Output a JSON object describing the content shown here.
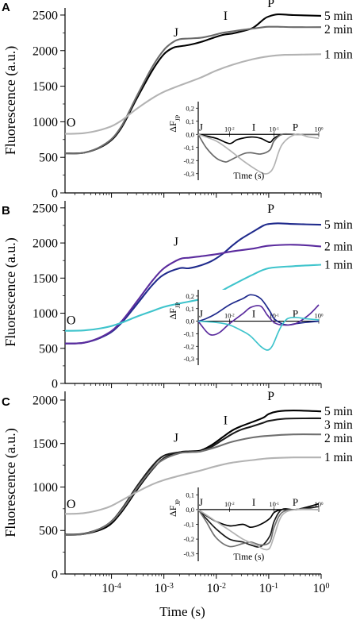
{
  "figure": {
    "xlabel": "Time (s)",
    "x_ticks": [
      {
        "exp": -4,
        "base": "10",
        "sup": "-4"
      },
      {
        "exp": -3,
        "base": "10",
        "sup": "-3"
      },
      {
        "exp": -2,
        "base": "10",
        "sup": "-2"
      },
      {
        "exp": -1,
        "base": "10",
        "sup": "-1"
      },
      {
        "exp": 0,
        "base": "10",
        "sup": "0"
      }
    ]
  },
  "chart_data": [
    {
      "type": "line",
      "panel_label": "A",
      "ylabel": "Fluorescence (a.u.)",
      "x_scale": "log",
      "xlim": [
        1.3e-05,
        1
      ],
      "ylim": [
        0,
        2600
      ],
      "y_ticks": [
        0,
        500,
        1000,
        1500,
        2000,
        2500
      ],
      "phase_labels": [
        {
          "text": "O",
          "x": 1.7e-05,
          "y": 930
        },
        {
          "text": "J",
          "x": 0.0017,
          "y": 2200
        },
        {
          "text": "I",
          "x": 0.015,
          "y": 2430
        },
        {
          "text": "P",
          "x": 0.11,
          "y": 2610
        }
      ],
      "series": [
        {
          "name": "5 min",
          "color": "#000000",
          "x": [
            1e-05,
            3e-05,
            8e-05,
            0.00015,
            0.0003,
            0.0006,
            0.001,
            0.0015,
            0.002,
            0.003,
            0.005,
            0.008,
            0.013,
            0.02,
            0.03,
            0.05,
            0.08,
            0.1,
            0.15,
            0.3,
            1
          ],
          "y": [
            560,
            565,
            690,
            900,
            1320,
            1720,
            1950,
            2040,
            2060,
            2080,
            2120,
            2170,
            2220,
            2240,
            2270,
            2320,
            2440,
            2480,
            2510,
            2500,
            2490
          ]
        },
        {
          "name": "2 min",
          "color": "#6b6b6b",
          "x": [
            1e-05,
            3e-05,
            8e-05,
            0.00015,
            0.0003,
            0.0006,
            0.001,
            0.0015,
            0.002,
            0.003,
            0.005,
            0.008,
            0.013,
            0.02,
            0.03,
            0.05,
            0.08,
            0.1,
            0.15,
            0.3,
            1
          ],
          "y": [
            560,
            565,
            700,
            920,
            1350,
            1770,
            2010,
            2120,
            2160,
            2170,
            2180,
            2210,
            2250,
            2270,
            2290,
            2310,
            2330,
            2335,
            2335,
            2330,
            2330
          ]
        },
        {
          "name": "1 min",
          "color": "#b3b3b3",
          "x": [
            1e-05,
            3e-05,
            8e-05,
            0.00015,
            0.0003,
            0.0006,
            0.001,
            0.002,
            0.005,
            0.01,
            0.02,
            0.05,
            0.1,
            0.2,
            0.5,
            1
          ],
          "y": [
            830,
            840,
            910,
            1010,
            1180,
            1330,
            1420,
            1510,
            1620,
            1720,
            1800,
            1880,
            1920,
            1940,
            1945,
            1950
          ]
        }
      ],
      "inset": {
        "ylabel": "ΔF",
        "ylabel_sub": "JP",
        "xlabel": "Time (s)",
        "ylim": [
          -0.35,
          0.25
        ],
        "y_ticks": [
          "0,2",
          "0,1",
          "0,0",
          "-0,1",
          "-0,2",
          "-0,3"
        ],
        "x_ticks": [
          "10-2",
          "10-1",
          "100"
        ],
        "letters": [
          "J",
          "I",
          "P"
        ],
        "series": [
          {
            "name": "5 min",
            "color": "#000000",
            "x": [
              0.002,
              0.005,
              0.01,
              0.015,
              0.03,
              0.05,
              0.08,
              0.1,
              0.15,
              0.3,
              1
            ],
            "y": [
              0,
              -0.03,
              -0.07,
              -0.04,
              -0.02,
              -0.03,
              -0.06,
              -0.03,
              0,
              0,
              0
            ]
          },
          {
            "name": "2 min",
            "color": "#6b6b6b",
            "x": [
              0.002,
              0.003,
              0.005,
              0.008,
              0.01,
              0.02,
              0.03,
              0.05,
              0.08,
              0.1,
              0.15,
              0.3,
              1
            ],
            "y": [
              0,
              -0.1,
              -0.18,
              -0.21,
              -0.2,
              -0.15,
              -0.14,
              -0.15,
              -0.12,
              -0.05,
              0,
              0,
              0
            ]
          },
          {
            "name": "1 min",
            "color": "#b3b3b3",
            "x": [
              0.002,
              0.005,
              0.01,
              0.02,
              0.04,
              0.06,
              0.08,
              0.1,
              0.15,
              0.3,
              0.6,
              1
            ],
            "y": [
              0,
              -0.05,
              -0.12,
              -0.2,
              -0.27,
              -0.3,
              -0.29,
              -0.24,
              -0.08,
              0,
              -0.02,
              -0.03
            ]
          }
        ]
      }
    },
    {
      "type": "line",
      "panel_label": "B",
      "ylabel": "Fluorescence (a.u.)",
      "x_scale": "log",
      "xlim": [
        1.3e-05,
        1
      ],
      "ylim": [
        0,
        2600
      ],
      "y_ticks": [
        0,
        500,
        1000,
        1500,
        2000,
        2500
      ],
      "phase_labels": [
        {
          "text": "O",
          "x": 1.7e-05,
          "y": 840
        },
        {
          "text": "J",
          "x": 0.0017,
          "y": 1960
        },
        {
          "text": "P",
          "x": 0.11,
          "y": 2430
        }
      ],
      "series": [
        {
          "name": "5 min",
          "color": "#1f2a8c",
          "x": [
            1e-05,
            3e-05,
            8e-05,
            0.00015,
            0.0003,
            0.0006,
            0.001,
            0.002,
            0.003,
            0.005,
            0.008,
            0.013,
            0.02,
            0.03,
            0.05,
            0.08,
            0.1,
            0.15,
            0.3,
            1
          ],
          "y": [
            570,
            580,
            690,
            850,
            1120,
            1400,
            1550,
            1640,
            1640,
            1680,
            1740,
            1840,
            1960,
            2060,
            2160,
            2250,
            2270,
            2280,
            2270,
            2260
          ]
        },
        {
          "name": "2 min",
          "color": "#5b2c9e",
          "x": [
            1e-05,
            3e-05,
            8e-05,
            0.00015,
            0.0003,
            0.0006,
            0.001,
            0.002,
            0.003,
            0.005,
            0.01,
            0.02,
            0.05,
            0.1,
            0.3,
            1
          ],
          "y": [
            570,
            580,
            700,
            870,
            1160,
            1460,
            1640,
            1770,
            1790,
            1810,
            1840,
            1880,
            1920,
            1960,
            1975,
            1950
          ]
        },
        {
          "name": "1 min",
          "color": "#3fc4cc",
          "x": [
            1e-05,
            3e-05,
            8e-05,
            0.00015,
            0.0003,
            0.0006,
            0.001,
            0.002,
            0.005,
            0.01,
            0.02,
            0.05,
            0.1,
            0.3,
            1
          ],
          "y": [
            750,
            755,
            800,
            860,
            950,
            1030,
            1090,
            1140,
            1200,
            1280,
            1400,
            1550,
            1640,
            1670,
            1690
          ]
        }
      ],
      "inset": {
        "ylabel": "ΔF",
        "ylabel_sub": "JP",
        "xlabel": "",
        "ylim": [
          -0.35,
          0.25
        ],
        "y_ticks": [
          "0,2",
          "0,1",
          "0,0",
          "-0,1",
          "-0,2",
          "-0,3"
        ],
        "x_ticks": [
          "10-2",
          "10-1",
          "100"
        ],
        "letters": [
          "J",
          "I",
          "P"
        ],
        "series": [
          {
            "name": "5 min",
            "color": "#1f2a8c",
            "x": [
              0.002,
              0.003,
              0.005,
              0.01,
              0.02,
              0.03,
              0.05,
              0.08,
              0.1,
              0.15,
              0.2,
              0.3,
              0.5,
              1
            ],
            "y": [
              0,
              0.02,
              0.06,
              0.13,
              0.18,
              0.21,
              0.18,
              0.08,
              0.02,
              -0.02,
              -0.03,
              -0.02,
              -0.01,
              0
            ]
          },
          {
            "name": "2 min",
            "color": "#5b2c9e",
            "x": [
              0.002,
              0.003,
              0.004,
              0.006,
              0.01,
              0.02,
              0.03,
              0.05,
              0.07,
              0.1,
              0.15,
              0.3,
              0.6,
              1
            ],
            "y": [
              0,
              -0.08,
              -0.11,
              -0.09,
              -0.02,
              0.06,
              0.11,
              0.12,
              0.05,
              -0.01,
              -0.03,
              -0.02,
              0.05,
              0.13
            ]
          },
          {
            "name": "1 min",
            "color": "#3fc4cc",
            "x": [
              0.002,
              0.005,
              0.01,
              0.02,
              0.03,
              0.05,
              0.07,
              0.09,
              0.12,
              0.15,
              0.2,
              0.3,
              0.5,
              1
            ],
            "y": [
              0,
              -0.01,
              -0.03,
              -0.08,
              -0.12,
              -0.2,
              -0.23,
              -0.2,
              -0.1,
              -0.03,
              0.02,
              0.03,
              0.02,
              0.01
            ]
          }
        ]
      }
    },
    {
      "type": "line",
      "panel_label": "C",
      "ylabel": "Fluorescence (a.u.)",
      "x_scale": "log",
      "xlim": [
        1.3e-05,
        1
      ],
      "ylim": [
        0,
        2100
      ],
      "y_ticks": [
        0,
        500,
        1000,
        1500,
        2000
      ],
      "phase_labels": [
        {
          "text": "O",
          "x": 1.7e-05,
          "y": 760
        },
        {
          "text": "J",
          "x": 0.0017,
          "y": 1520
        },
        {
          "text": "I",
          "x": 0.015,
          "y": 1720
        },
        {
          "text": "P",
          "x": 0.11,
          "y": 2000
        }
      ],
      "series": [
        {
          "name": "5 min",
          "color": "#000000",
          "x": [
            1e-05,
            3e-05,
            8e-05,
            0.00015,
            0.0003,
            0.0006,
            0.001,
            0.002,
            0.003,
            0.005,
            0.008,
            0.013,
            0.02,
            0.03,
            0.05,
            0.08,
            0.1,
            0.15,
            0.3,
            1
          ],
          "y": [
            450,
            460,
            540,
            700,
            960,
            1200,
            1330,
            1400,
            1410,
            1420,
            1480,
            1570,
            1650,
            1700,
            1750,
            1800,
            1840,
            1870,
            1880,
            1870
          ]
        },
        {
          "name": "3 min",
          "color": "#1a1a1a",
          "x": [
            1e-05,
            3e-05,
            8e-05,
            0.00015,
            0.0003,
            0.0006,
            0.001,
            0.002,
            0.003,
            0.005,
            0.008,
            0.013,
            0.02,
            0.03,
            0.05,
            0.08,
            0.1,
            0.2,
            0.5,
            1
          ],
          "y": [
            455,
            465,
            560,
            730,
            1000,
            1240,
            1360,
            1400,
            1405,
            1410,
            1460,
            1540,
            1610,
            1660,
            1700,
            1740,
            1760,
            1785,
            1790,
            1790
          ]
        },
        {
          "name": "2 min",
          "color": "#707070",
          "x": [
            1e-05,
            3e-05,
            8e-05,
            0.00015,
            0.0003,
            0.0006,
            0.001,
            0.002,
            0.003,
            0.005,
            0.01,
            0.02,
            0.05,
            0.1,
            0.3,
            1
          ],
          "y": [
            450,
            460,
            560,
            720,
            980,
            1210,
            1320,
            1390,
            1400,
            1410,
            1460,
            1520,
            1570,
            1590,
            1605,
            1605
          ]
        },
        {
          "name": "1 min",
          "color": "#b3b3b3",
          "x": [
            1e-05,
            3e-05,
            8e-05,
            0.00015,
            0.0003,
            0.0006,
            0.001,
            0.002,
            0.005,
            0.01,
            0.02,
            0.05,
            0.1,
            0.3,
            1
          ],
          "y": [
            690,
            700,
            760,
            840,
            940,
            1030,
            1080,
            1130,
            1190,
            1240,
            1280,
            1310,
            1330,
            1340,
            1340
          ]
        }
      ],
      "inset": {
        "ylabel": "ΔF",
        "ylabel_sub": "JP",
        "xlabel": "Time (s)",
        "ylim": [
          -0.35,
          0.15
        ],
        "y_ticks": [
          "0,1",
          "0,0",
          "-0,1",
          "-0,2",
          "-0,3"
        ],
        "x_ticks": [
          "10-2",
          "10-1",
          "100"
        ],
        "letters": [
          "J",
          "I",
          "P"
        ],
        "series": [
          {
            "name": "5 min",
            "color": "#000000",
            "x": [
              0.002,
              0.003,
              0.005,
              0.01,
              0.02,
              0.03,
              0.05,
              0.08,
              0.1,
              0.15,
              0.3,
              0.6,
              1
            ],
            "y": [
              0,
              -0.04,
              -0.08,
              -0.11,
              -0.1,
              -0.12,
              -0.1,
              -0.06,
              -0.02,
              0,
              0,
              0.02,
              0.04
            ]
          },
          {
            "name": "3 min",
            "color": "#1a1a1a",
            "x": [
              0.002,
              0.003,
              0.005,
              0.01,
              0.02,
              0.03,
              0.05,
              0.08,
              0.1,
              0.15,
              0.3,
              1
            ],
            "y": [
              0,
              -0.06,
              -0.13,
              -0.2,
              -0.22,
              -0.24,
              -0.25,
              -0.18,
              -0.08,
              0,
              0,
              0.02
            ]
          },
          {
            "name": "2 min",
            "color": "#707070",
            "x": [
              0.002,
              0.003,
              0.005,
              0.01,
              0.02,
              0.03,
              0.05,
              0.08,
              0.1,
              0.15,
              0.3,
              1
            ],
            "y": [
              0,
              -0.08,
              -0.19,
              -0.25,
              -0.23,
              -0.22,
              -0.24,
              -0.22,
              -0.12,
              -0.02,
              0,
              0
            ]
          },
          {
            "name": "1 min",
            "color": "#b3b3b3",
            "x": [
              0.002,
              0.005,
              0.01,
              0.02,
              0.04,
              0.06,
              0.08,
              0.1,
              0.15,
              0.3,
              1
            ],
            "y": [
              0,
              -0.08,
              -0.14,
              -0.2,
              -0.24,
              -0.27,
              -0.26,
              -0.18,
              -0.04,
              0,
              0
            ]
          }
        ]
      }
    }
  ]
}
